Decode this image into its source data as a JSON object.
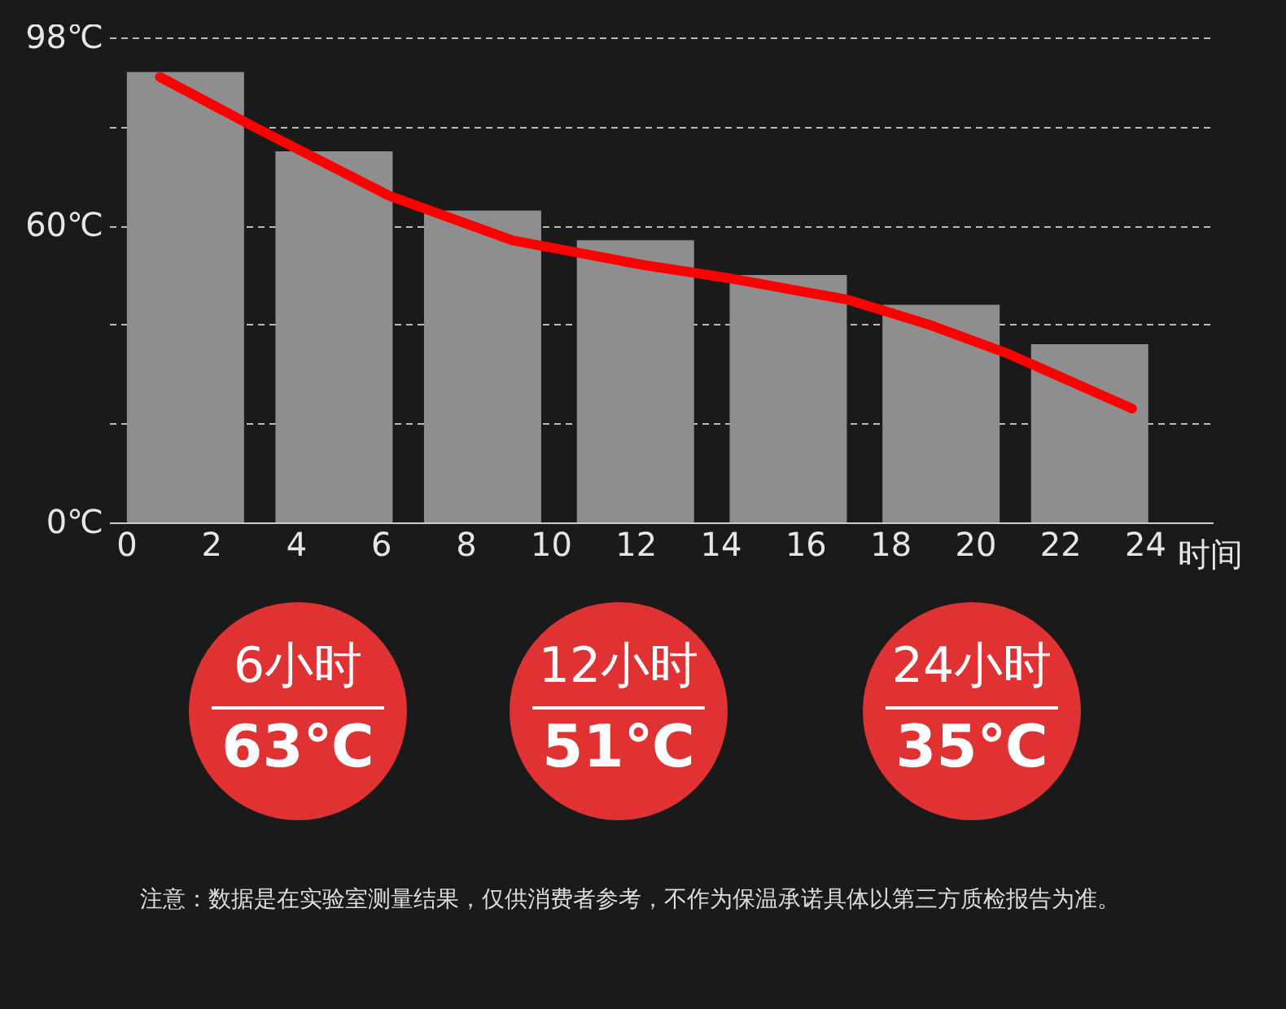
{
  "chart_data": {
    "type": "bar",
    "xlabel": "时间",
    "x": [
      1.4,
      4.9,
      8.4,
      12,
      15.6,
      19.2,
      22.7
    ],
    "series": [
      {
        "type": "bar",
        "color": "#8e8e8e",
        "values": [
          91,
          75,
          63,
          57,
          50,
          44,
          36
        ]
      },
      {
        "type": "line",
        "color": "#ff0000",
        "x": [
          0.8,
          3,
          6.2,
          9.1,
          12.2,
          14.1,
          17,
          18.9,
          20.8,
          23.7
        ],
        "values": [
          90,
          80,
          66,
          57,
          52,
          49.5,
          45,
          40,
          34,
          23
        ]
      }
    ],
    "xlim": [
      -0.4,
      25.6
    ],
    "xticks": [
      0,
      2,
      4,
      6,
      8,
      10,
      12,
      14,
      16,
      18,
      20,
      22,
      24
    ],
    "ylim": [
      0,
      98
    ],
    "yticks": [
      {
        "value": 0,
        "label": "0℃"
      },
      {
        "value": 20,
        "label": null
      },
      {
        "value": 40,
        "label": null
      },
      {
        "value": 60,
        "label": "60℃"
      },
      {
        "value": 80,
        "label": null
      },
      {
        "value": 98,
        "label": "98℃"
      }
    ],
    "grid": "y",
    "annotations": [
      "6小时",
      "63℃",
      "12小时",
      "51℃",
      "24小时",
      "35℃",
      "注意：数据是在实验室测量结果，仅供消费者参考，不作为保温承诺具体以第三方质检报告为准。"
    ]
  }
}
